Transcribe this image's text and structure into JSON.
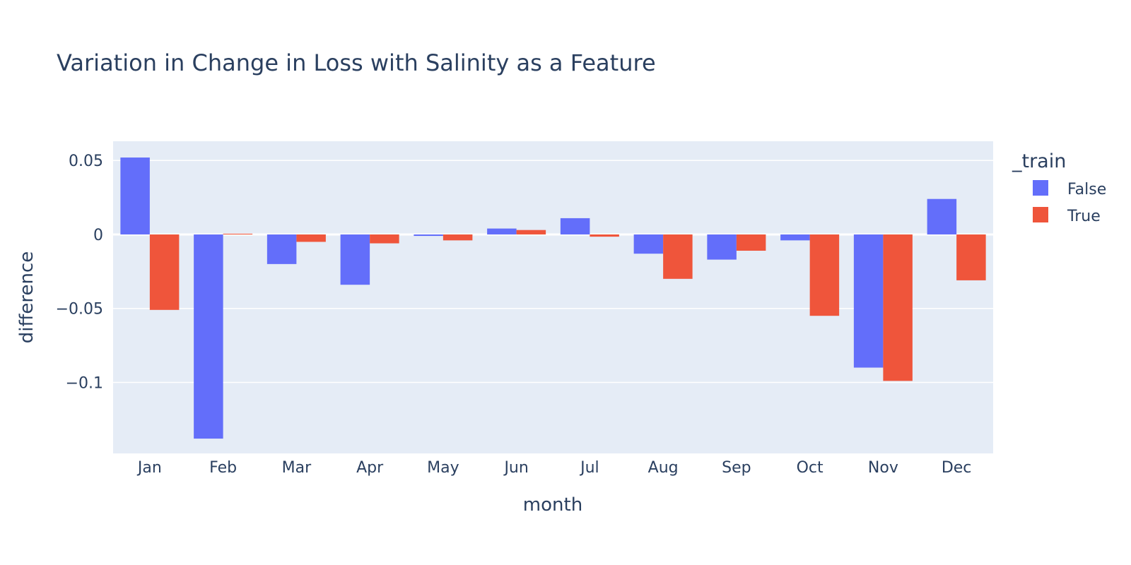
{
  "chart_data": {
    "type": "bar",
    "title": "Variation in Change in Loss with Salinity as a Feature",
    "xlabel": "month",
    "ylabel": "difference",
    "categories": [
      "Jan",
      "Feb",
      "Mar",
      "Apr",
      "May",
      "Jun",
      "Jul",
      "Aug",
      "Sep",
      "Oct",
      "Nov",
      "Dec"
    ],
    "ylim": [
      -0.148,
      0.063
    ],
    "yticks": [
      {
        "value": 0.05,
        "label": "0.05"
      },
      {
        "value": 0,
        "label": "0"
      },
      {
        "value": -0.05,
        "label": "−0.05"
      },
      {
        "value": -0.1,
        "label": "−0.1"
      }
    ],
    "legend": {
      "title": "_train",
      "placement": "right"
    },
    "grid": true,
    "plot_background": "#e5ecf6",
    "series": [
      {
        "name": "False",
        "color": "#636efa",
        "values": [
          0.052,
          -0.138,
          -0.02,
          -0.034,
          -0.001,
          0.004,
          0.011,
          -0.013,
          -0.017,
          -0.004,
          -0.09,
          0.024
        ]
      },
      {
        "name": "True",
        "color": "#ef553b",
        "values": [
          -0.051,
          0.0005,
          -0.005,
          -0.006,
          -0.004,
          0.003,
          -0.0015,
          -0.03,
          -0.011,
          -0.055,
          -0.099,
          -0.031
        ]
      }
    ]
  }
}
